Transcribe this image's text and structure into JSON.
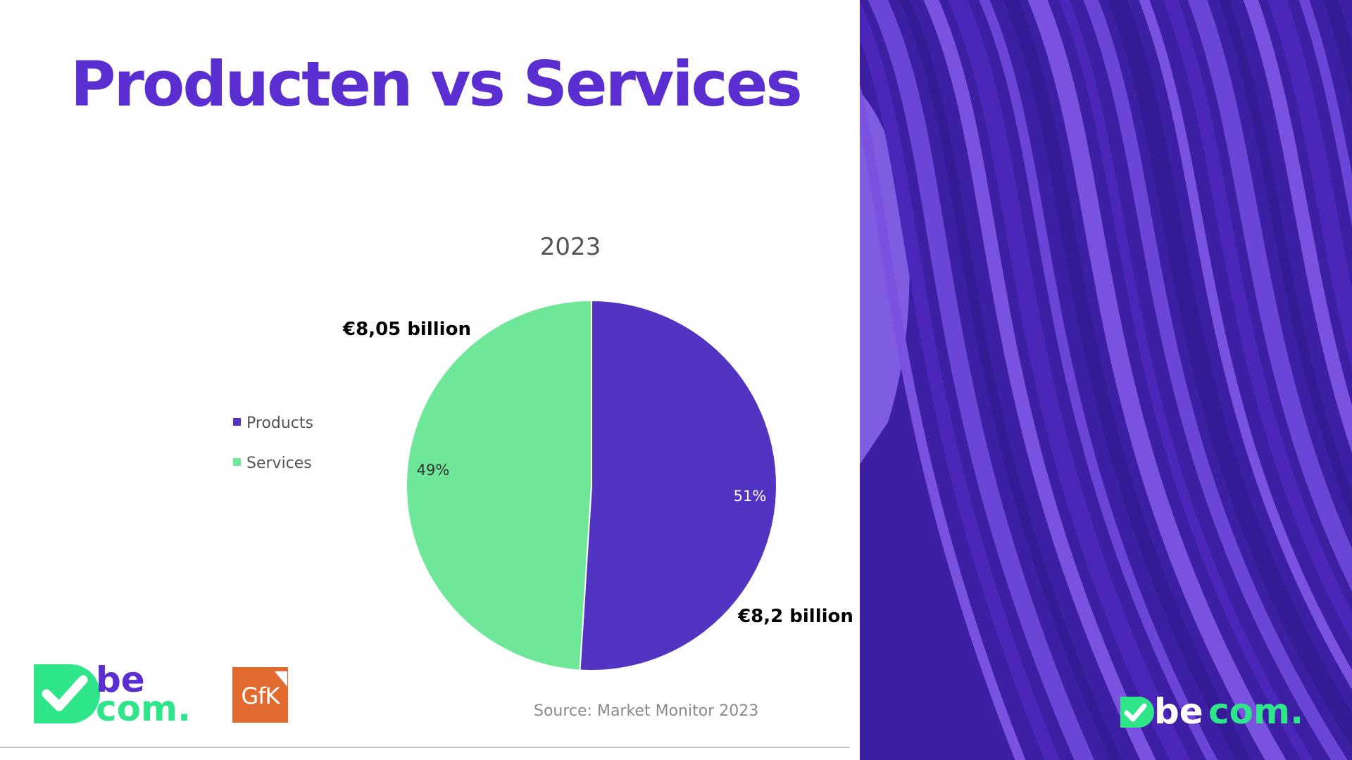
{
  "slide": {
    "title": "Producten vs Services",
    "source": "Source: Market Monitor 2023",
    "colors": {
      "title": "#5a2ed0",
      "products": "#5233c2",
      "services": "#6ee898",
      "panel_dark": "#3d1fa4",
      "panel_light": "#7b55de",
      "brand_green": "#2ee58a",
      "gfk_orange": "#e06a30"
    }
  },
  "logos": {
    "becom_left": {
      "line1": "be",
      "line2": "com.",
      "icon": "checkmark-badge-icon"
    },
    "gfk": {
      "text": "GfK"
    },
    "becom_right": {
      "part1": "be",
      "part2": "com.",
      "icon": "checkmark-badge-icon"
    }
  },
  "chart_data": {
    "type": "pie",
    "title": "2023",
    "categories": [
      "Products",
      "Services"
    ],
    "values": [
      51,
      49
    ],
    "value_labels": [
      "51%",
      "49%"
    ],
    "amount_labels": [
      "€8,2 billion",
      "€8,05 billion"
    ],
    "colors": [
      "#5233c2",
      "#6ee898"
    ],
    "legend_position": "left"
  }
}
